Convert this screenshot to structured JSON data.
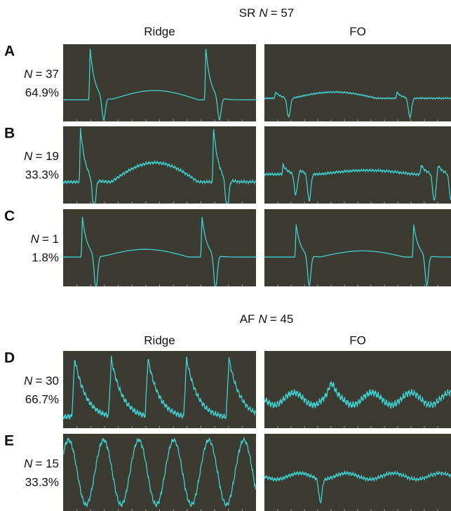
{
  "groups": [
    {
      "title": {
        "label": "SR",
        "n_symbol": "N",
        "n_text": "= 57"
      },
      "columns": [
        "Ridge",
        "FO"
      ],
      "rows": [
        {
          "letter": "A",
          "n_symbol": "N",
          "n_text": "= 37",
          "percent": "64.9%"
        },
        {
          "letter": "B",
          "n_symbol": "N",
          "n_text": "= 19",
          "percent": "33.3%"
        },
        {
          "letter": "C",
          "n_symbol": "N",
          "n_text": "= 1",
          "percent": "1.8%"
        }
      ]
    },
    {
      "title": {
        "label": "AF",
        "n_symbol": "N",
        "n_text": "= 45"
      },
      "columns": [
        "Ridge",
        "FO"
      ],
      "rows": [
        {
          "letter": "D",
          "n_symbol": "N",
          "n_text": "= 30",
          "percent": "66.7%"
        },
        {
          "letter": "E",
          "n_symbol": "N",
          "n_text": "= 15",
          "percent": "33.3%"
        }
      ]
    }
  ]
}
